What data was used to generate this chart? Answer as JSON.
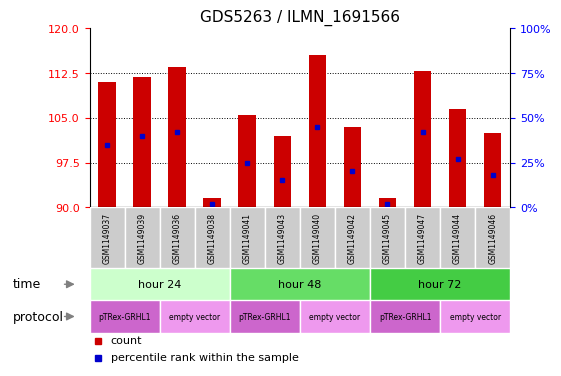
{
  "title": "GDS5263 / ILMN_1691566",
  "samples": [
    "GSM1149037",
    "GSM1149039",
    "GSM1149036",
    "GSM1149038",
    "GSM1149041",
    "GSM1149043",
    "GSM1149040",
    "GSM1149042",
    "GSM1149045",
    "GSM1149047",
    "GSM1149044",
    "GSM1149046"
  ],
  "counts": [
    111.0,
    111.8,
    113.5,
    91.5,
    105.5,
    102.0,
    115.5,
    103.5,
    91.5,
    112.8,
    106.5,
    102.5
  ],
  "percentile_ranks": [
    35,
    40,
    42,
    2,
    25,
    15,
    45,
    20,
    2,
    42,
    27,
    18
  ],
  "ylim_left": [
    90,
    120
  ],
  "ylim_right": [
    0,
    100
  ],
  "yticks_left": [
    90,
    97.5,
    105,
    112.5,
    120
  ],
  "yticks_right": [
    0,
    25,
    50,
    75,
    100
  ],
  "bar_color": "#cc0000",
  "dot_color": "#0000cc",
  "time_groups": [
    {
      "label": "hour 24",
      "start": 0,
      "end": 4,
      "color": "#ccffcc"
    },
    {
      "label": "hour 48",
      "start": 4,
      "end": 8,
      "color": "#66dd66"
    },
    {
      "label": "hour 72",
      "start": 8,
      "end": 12,
      "color": "#44cc44"
    }
  ],
  "protocol_groups": [
    {
      "label": "pTRex-GRHL1",
      "start": 0,
      "end": 2,
      "color": "#cc66cc"
    },
    {
      "label": "empty vector",
      "start": 2,
      "end": 4,
      "color": "#ee99ee"
    },
    {
      "label": "pTRex-GRHL1",
      "start": 4,
      "end": 6,
      "color": "#cc66cc"
    },
    {
      "label": "empty vector",
      "start": 6,
      "end": 8,
      "color": "#ee99ee"
    },
    {
      "label": "pTRex-GRHL1",
      "start": 8,
      "end": 10,
      "color": "#cc66cc"
    },
    {
      "label": "empty vector",
      "start": 10,
      "end": 12,
      "color": "#ee99ee"
    }
  ],
  "sample_box_color": "#cccccc",
  "legend_count_color": "#cc0000",
  "legend_dot_color": "#0000cc",
  "bar_width": 0.5
}
